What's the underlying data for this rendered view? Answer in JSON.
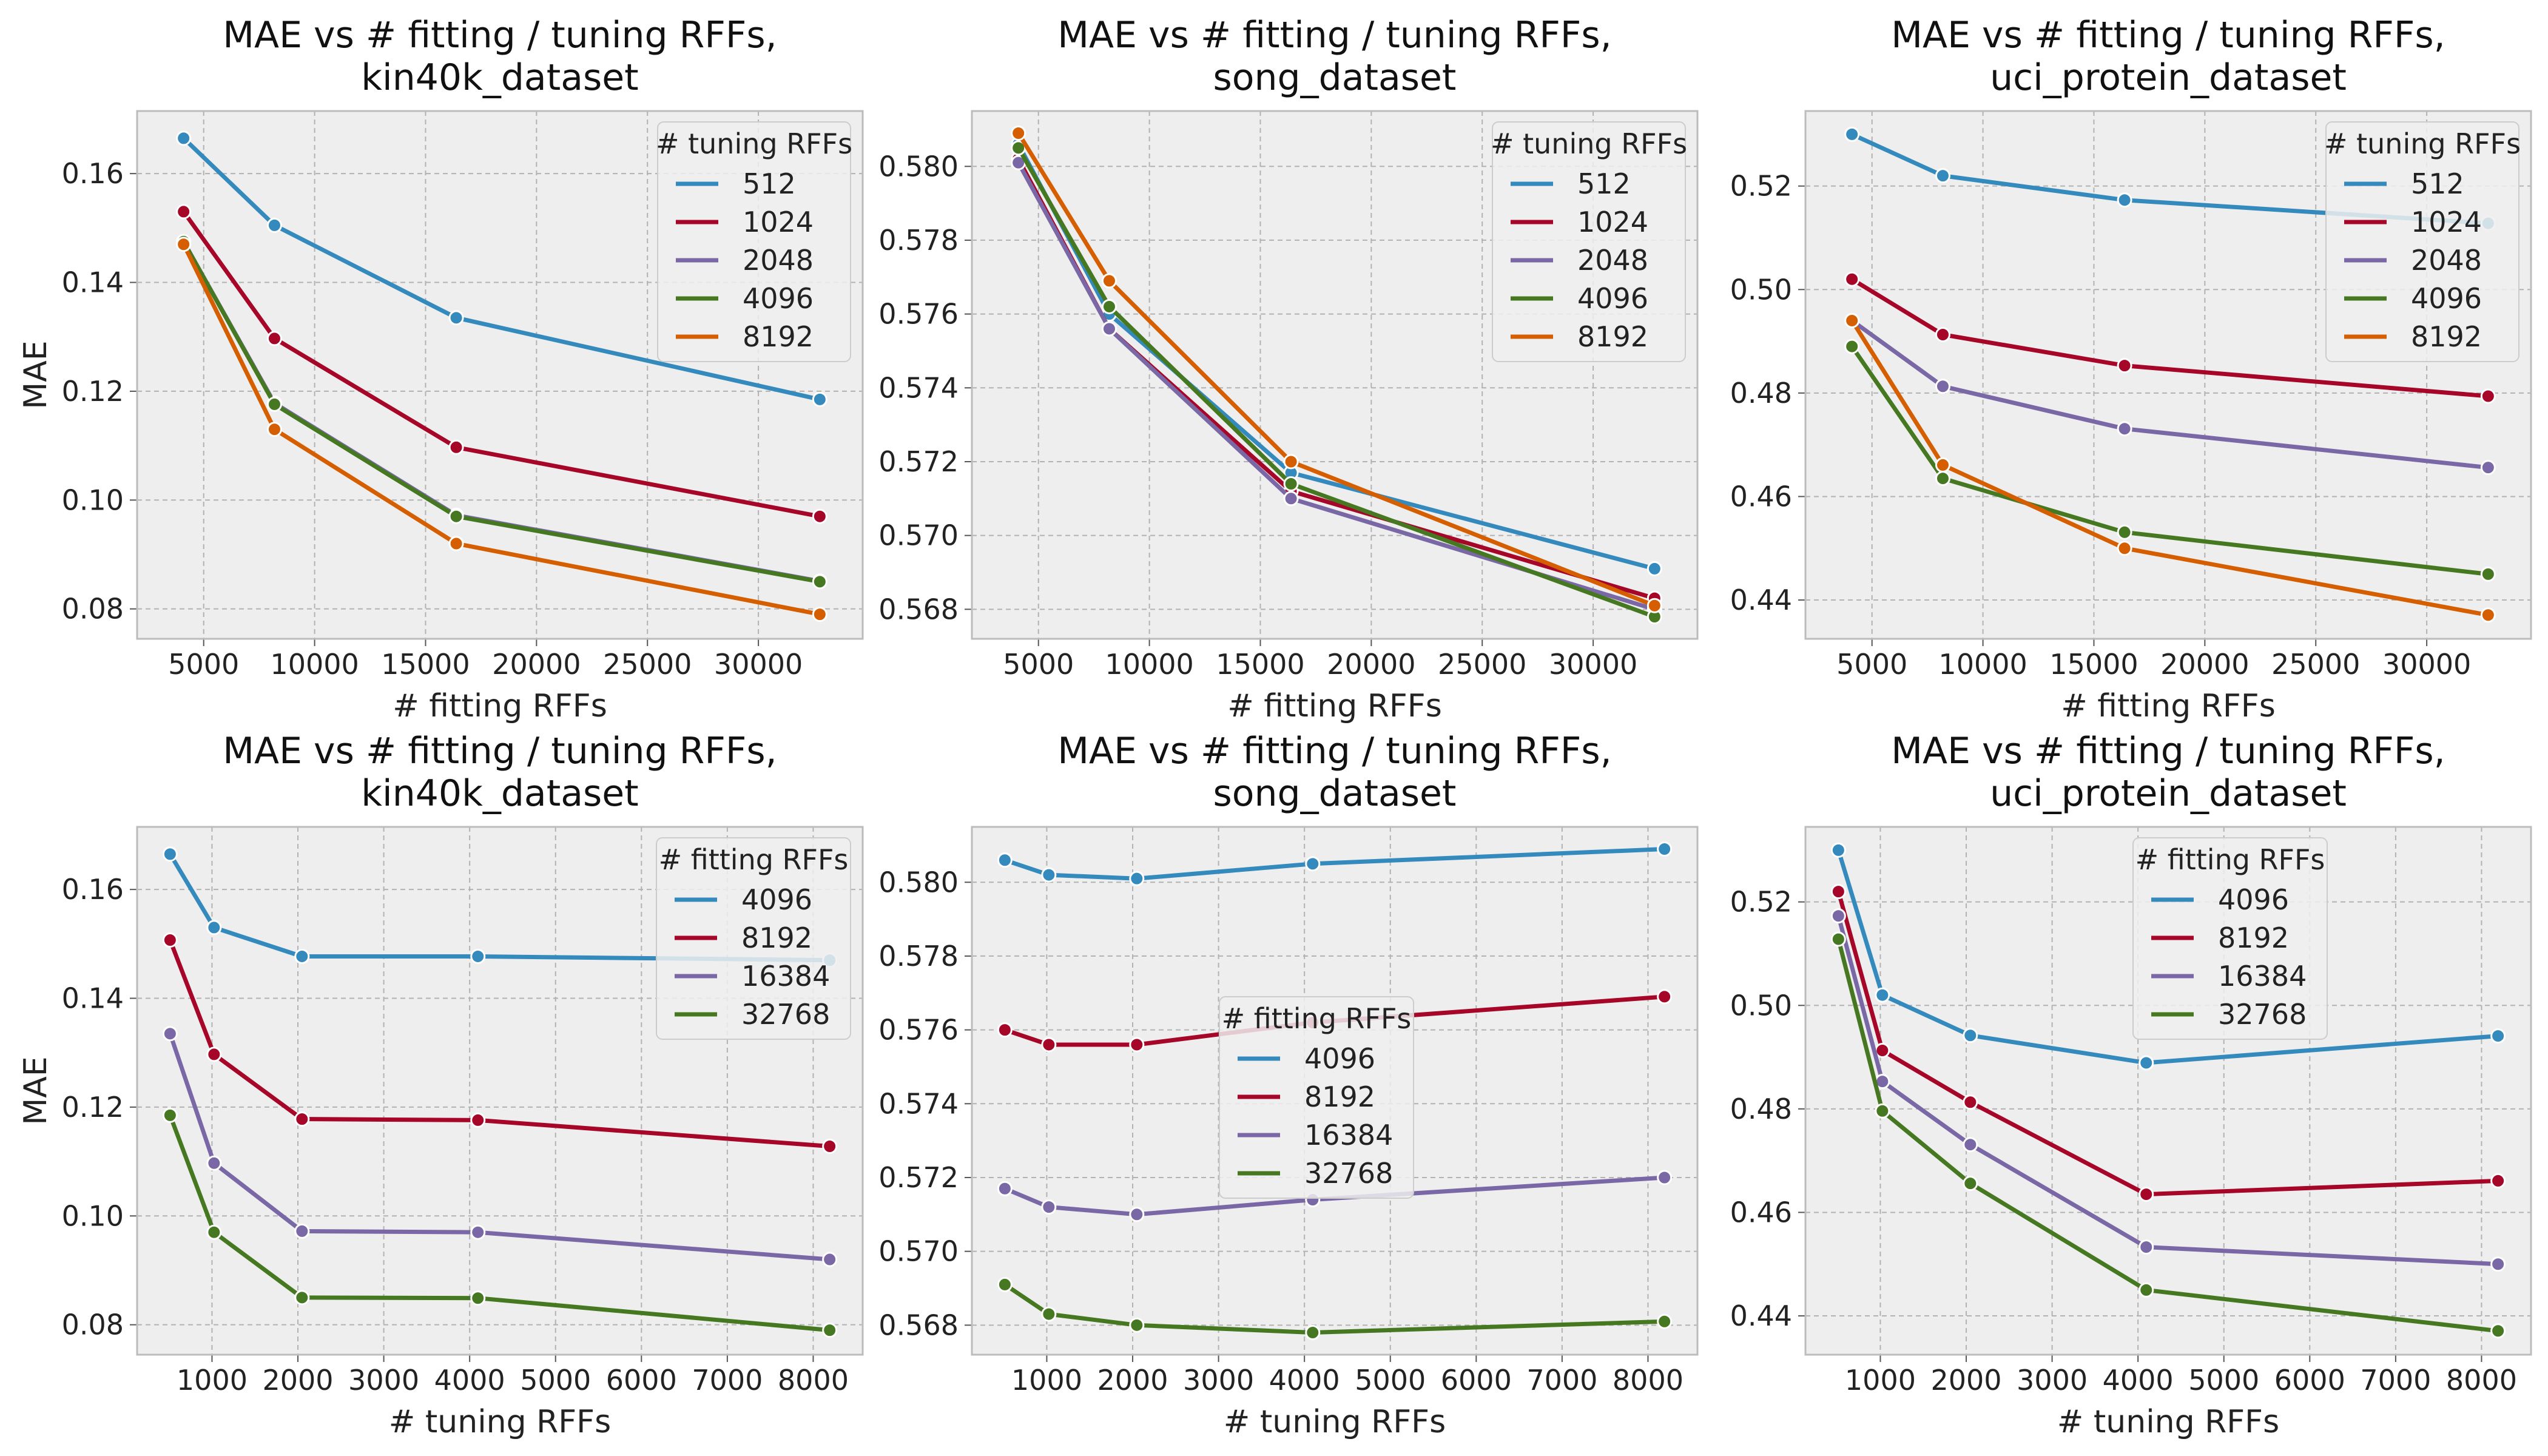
{
  "colors": {
    "blue": "#348ABD",
    "red": "#A60628",
    "purple": "#7A68A6",
    "green": "#467821",
    "orange": "#D55E00",
    "panel_bg": "#EEEEEE",
    "grid": "#B2B2B2"
  },
  "chart_data": [
    {
      "type": "line",
      "title": "MAE vs # fitting / tuning RFFs,\nkin40k_dataset",
      "xlabel": "# fitting RFFs",
      "ylabel": "MAE",
      "xlim": [
        2000,
        34700
      ],
      "ylim": [
        0.0745,
        0.1715
      ],
      "xticks": [
        5000,
        10000,
        15000,
        20000,
        25000,
        30000
      ],
      "xtick_labels": [
        "5000",
        "10000",
        "15000",
        "20000",
        "25000",
        "30000"
      ],
      "yticks": [
        0.08,
        0.1,
        0.12,
        0.14,
        0.16
      ],
      "ytick_labels": [
        "0.08",
        "0.10",
        "0.12",
        "0.14",
        "0.16"
      ],
      "legend_title": "# tuning RFFs",
      "legend_position": "top-right",
      "x": [
        4096,
        8192,
        16384,
        32768
      ],
      "series": [
        {
          "name": "512",
          "color": "#348ABD",
          "values": [
            0.1665,
            0.1505,
            0.1335,
            0.1185
          ]
        },
        {
          "name": "1024",
          "color": "#A60628",
          "values": [
            0.153,
            0.1297,
            0.1097,
            0.097
          ]
        },
        {
          "name": "2048",
          "color": "#7A68A6",
          "values": [
            0.1475,
            0.1178,
            0.0972,
            0.0851
          ]
        },
        {
          "name": "4096",
          "color": "#467821",
          "values": [
            0.1475,
            0.1176,
            0.097,
            0.085
          ]
        },
        {
          "name": "8192",
          "color": "#D55E00",
          "values": [
            0.147,
            0.113,
            0.092,
            0.079
          ]
        }
      ]
    },
    {
      "type": "line",
      "title": "MAE vs # fitting / tuning RFFs,\nsong_dataset",
      "xlabel": "# fitting RFFs",
      "ylabel": "",
      "xlim": [
        2000,
        34700
      ],
      "ylim": [
        0.5672,
        0.5815
      ],
      "xticks": [
        5000,
        10000,
        15000,
        20000,
        25000,
        30000
      ],
      "xtick_labels": [
        "5000",
        "10000",
        "15000",
        "20000",
        "25000",
        "30000"
      ],
      "yticks": [
        0.568,
        0.57,
        0.572,
        0.574,
        0.576,
        0.578,
        0.58
      ],
      "ytick_labels": [
        "0.568",
        "0.570",
        "0.572",
        "0.574",
        "0.576",
        "0.578",
        "0.580"
      ],
      "legend_title": "# tuning RFFs",
      "legend_position": "top-right",
      "x": [
        4096,
        8192,
        16384,
        32768
      ],
      "series": [
        {
          "name": "512",
          "color": "#348ABD",
          "values": [
            0.5806,
            0.576,
            0.5717,
            0.5691
          ]
        },
        {
          "name": "1024",
          "color": "#A60628",
          "values": [
            0.5802,
            0.5756,
            0.5712,
            0.5683
          ]
        },
        {
          "name": "2048",
          "color": "#7A68A6",
          "values": [
            0.5801,
            0.5756,
            0.571,
            0.568
          ]
        },
        {
          "name": "4096",
          "color": "#467821",
          "values": [
            0.5805,
            0.5762,
            0.5714,
            0.5678
          ]
        },
        {
          "name": "8192",
          "color": "#D55E00",
          "values": [
            0.5809,
            0.5769,
            0.572,
            0.5681
          ]
        }
      ]
    },
    {
      "type": "line",
      "title": "MAE vs # fitting / tuning RFFs,\nuci_protein_dataset",
      "xlabel": "# fitting RFFs",
      "ylabel": "",
      "xlim": [
        2000,
        34700
      ],
      "ylim": [
        0.4325,
        0.5345
      ],
      "xticks": [
        5000,
        10000,
        15000,
        20000,
        25000,
        30000
      ],
      "xtick_labels": [
        "5000",
        "10000",
        "15000",
        "20000",
        "25000",
        "30000"
      ],
      "yticks": [
        0.44,
        0.46,
        0.48,
        0.5,
        0.52
      ],
      "ytick_labels": [
        "0.44",
        "0.46",
        "0.48",
        "0.50",
        "0.52"
      ],
      "legend_title": "# tuning RFFs",
      "legend_position": "top-right",
      "x": [
        4096,
        8192,
        16384,
        32768
      ],
      "series": [
        {
          "name": "512",
          "color": "#348ABD",
          "values": [
            0.53,
            0.522,
            0.5173,
            0.5128
          ]
        },
        {
          "name": "1024",
          "color": "#A60628",
          "values": [
            0.502,
            0.4913,
            0.4853,
            0.4794
          ]
        },
        {
          "name": "2048",
          "color": "#7A68A6",
          "values": [
            0.494,
            0.4813,
            0.4731,
            0.4656
          ]
        },
        {
          "name": "4096",
          "color": "#467821",
          "values": [
            0.489,
            0.4635,
            0.4531,
            0.445
          ]
        },
        {
          "name": "8192",
          "color": "#D55E00",
          "values": [
            0.494,
            0.4661,
            0.45,
            0.4371
          ]
        }
      ]
    },
    {
      "type": "line",
      "title": "MAE vs # fitting / tuning RFFs,\nkin40k_dataset",
      "xlabel": "# tuning RFFs",
      "ylabel": "MAE",
      "xlim": [
        128,
        8576
      ],
      "ylim": [
        0.0745,
        0.1715
      ],
      "xticks": [
        1000,
        2000,
        3000,
        4000,
        5000,
        6000,
        7000,
        8000
      ],
      "xtick_labels": [
        "1000",
        "2000",
        "3000",
        "4000",
        "5000",
        "6000",
        "7000",
        "8000"
      ],
      "yticks": [
        0.08,
        0.1,
        0.12,
        0.14,
        0.16
      ],
      "ytick_labels": [
        "0.08",
        "0.10",
        "0.12",
        "0.14",
        "0.16"
      ],
      "legend_title": "# fitting RFFs",
      "legend_position": "top-right",
      "x": [
        512,
        1024,
        2048,
        4096,
        8192
      ],
      "series": [
        {
          "name": "4096",
          "color": "#348ABD",
          "values": [
            0.1665,
            0.153,
            0.1477,
            0.1477,
            0.147
          ]
        },
        {
          "name": "8192",
          "color": "#A60628",
          "values": [
            0.1507,
            0.1297,
            0.1178,
            0.1176,
            0.1128
          ]
        },
        {
          "name": "16384",
          "color": "#7A68A6",
          "values": [
            0.1335,
            0.1097,
            0.0972,
            0.097,
            0.092
          ]
        },
        {
          "name": "32768",
          "color": "#467821",
          "values": [
            0.1185,
            0.097,
            0.085,
            0.0849,
            0.079
          ]
        }
      ]
    },
    {
      "type": "line",
      "title": "MAE vs # fitting / tuning RFFs,\nsong_dataset",
      "xlabel": "# tuning RFFs",
      "ylabel": "",
      "xlim": [
        128,
        8576
      ],
      "ylim": [
        0.5672,
        0.5815
      ],
      "xticks": [
        1000,
        2000,
        3000,
        4000,
        5000,
        6000,
        7000,
        8000
      ],
      "xtick_labels": [
        "1000",
        "2000",
        "3000",
        "4000",
        "5000",
        "6000",
        "7000",
        "8000"
      ],
      "yticks": [
        0.568,
        0.57,
        0.572,
        0.574,
        0.576,
        0.578,
        0.58
      ],
      "ytick_labels": [
        "0.568",
        "0.570",
        "0.572",
        "0.574",
        "0.576",
        "0.578",
        "0.580"
      ],
      "legend_title": "# fitting RFFs",
      "legend_position": "center",
      "x": [
        512,
        1024,
        2048,
        4096,
        8192
      ],
      "series": [
        {
          "name": "4096",
          "color": "#348ABD",
          "values": [
            0.5806,
            0.5802,
            0.5801,
            0.5805,
            0.5809
          ]
        },
        {
          "name": "8192",
          "color": "#A60628",
          "values": [
            0.576,
            0.5756,
            0.5756,
            0.5762,
            0.5769
          ]
        },
        {
          "name": "16384",
          "color": "#7A68A6",
          "values": [
            0.5717,
            0.5712,
            0.571,
            0.5714,
            0.572
          ]
        },
        {
          "name": "32768",
          "color": "#467821",
          "values": [
            0.5691,
            0.5683,
            0.568,
            0.5678,
            0.5681
          ]
        }
      ]
    },
    {
      "type": "line",
      "title": "MAE vs # fitting / tuning RFFs,\nuci_protein_dataset",
      "xlabel": "# tuning RFFs",
      "ylabel": "",
      "xlim": [
        128,
        8576
      ],
      "ylim": [
        0.4325,
        0.5345
      ],
      "xticks": [
        1000,
        2000,
        3000,
        4000,
        5000,
        6000,
        7000,
        8000
      ],
      "xtick_labels": [
        "1000",
        "2000",
        "3000",
        "4000",
        "5000",
        "6000",
        "7000",
        "8000"
      ],
      "yticks": [
        0.44,
        0.46,
        0.48,
        0.5,
        0.52
      ],
      "ytick_labels": [
        "0.44",
        "0.46",
        "0.48",
        "0.50",
        "0.52"
      ],
      "legend_title": "# fitting RFFs",
      "legend_position": "top-center",
      "x": [
        512,
        1024,
        2048,
        4096,
        8192
      ],
      "series": [
        {
          "name": "4096",
          "color": "#348ABD",
          "values": [
            0.53,
            0.502,
            0.4942,
            0.4889,
            0.4941
          ]
        },
        {
          "name": "8192",
          "color": "#A60628",
          "values": [
            0.522,
            0.4913,
            0.4813,
            0.4635,
            0.4661
          ]
        },
        {
          "name": "16384",
          "color": "#7A68A6",
          "values": [
            0.5173,
            0.4853,
            0.4731,
            0.4533,
            0.45
          ]
        },
        {
          "name": "32768",
          "color": "#467821",
          "values": [
            0.5128,
            0.4796,
            0.4656,
            0.445,
            0.4371
          ]
        }
      ]
    }
  ]
}
